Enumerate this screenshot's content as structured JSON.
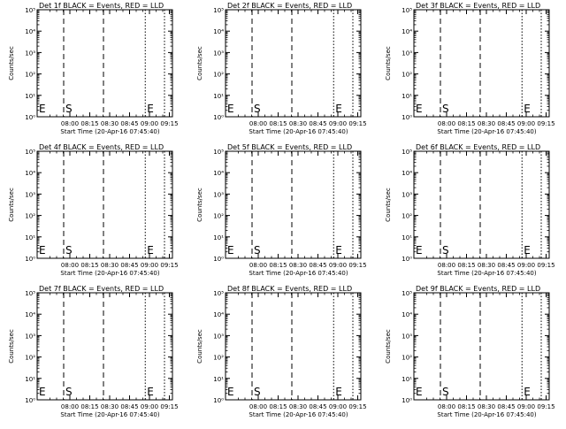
{
  "figure": {
    "background": "#ffffff",
    "ink_color": "#000000",
    "panel_count": 9
  },
  "chart_data": [
    {
      "type": "line",
      "title": "Det 1f BLACK = Events, RED = LLD",
      "xlabel": "Start Time (20-Apr-16 07:45:40)",
      "ylabel": "Counts/sec",
      "ylim": [
        1,
        100000
      ],
      "yscale": "log",
      "ytick_labels": [
        "10⁰",
        "10¹",
        "10²",
        "10³",
        "10⁴",
        "10⁵"
      ],
      "xtick_labels": [
        "08:00",
        "08:15",
        "08:30",
        "08:45",
        "09:00",
        "09:15"
      ],
      "xlim_minutes_after_start": [
        0,
        95
      ],
      "series": [],
      "markers": [
        {
          "label": "E",
          "minute": 0,
          "style": "dotted"
        },
        {
          "label": "S",
          "minute": 20,
          "style": "dashed"
        },
        {
          "label": "",
          "minute": 50,
          "style": "dashed"
        },
        {
          "label": "E",
          "minute": 81.5,
          "style": "dotted"
        },
        {
          "label": "",
          "minute": 96,
          "style": "dotted"
        }
      ]
    },
    {
      "type": "line",
      "title": "Det 2f BLACK = Events, RED = LLD",
      "xlabel": "Start Time (20-Apr-16 07:45:40)",
      "ylabel": "Counts/sec",
      "ylim": [
        1,
        100000
      ],
      "yscale": "log",
      "ytick_labels": [
        "10⁰",
        "10¹",
        "10²",
        "10³",
        "10⁴",
        "10⁵"
      ],
      "xtick_labels": [
        "08:00",
        "08:15",
        "08:30",
        "08:45",
        "09:00",
        "09:15"
      ],
      "xlim_minutes_after_start": [
        0,
        95
      ],
      "series": [],
      "markers": [
        {
          "label": "E",
          "minute": 0,
          "style": "dotted"
        },
        {
          "label": "S",
          "minute": 20,
          "style": "dashed"
        },
        {
          "label": "",
          "minute": 50,
          "style": "dashed"
        },
        {
          "label": "E",
          "minute": 81.5,
          "style": "dotted"
        },
        {
          "label": "",
          "minute": 96,
          "style": "dotted"
        }
      ]
    },
    {
      "type": "line",
      "title": "Det 3f BLACK = Events, RED = LLD",
      "xlabel": "Start Time (20-Apr-16 07:45:40)",
      "ylabel": "Counts/sec",
      "ylim": [
        1,
        100000
      ],
      "yscale": "log",
      "ytick_labels": [
        "10⁰",
        "10¹",
        "10²",
        "10³",
        "10⁴",
        "10⁵"
      ],
      "xtick_labels": [
        "08:00",
        "08:15",
        "08:30",
        "08:45",
        "09:00",
        "09:15"
      ],
      "xlim_minutes_after_start": [
        0,
        95
      ],
      "series": [],
      "markers": [
        {
          "label": "E",
          "minute": 0,
          "style": "dotted"
        },
        {
          "label": "S",
          "minute": 20,
          "style": "dashed"
        },
        {
          "label": "",
          "minute": 50,
          "style": "dashed"
        },
        {
          "label": "E",
          "minute": 81.5,
          "style": "dotted"
        },
        {
          "label": "",
          "minute": 96,
          "style": "dotted"
        }
      ]
    },
    {
      "type": "line",
      "title": "Det 4f BLACK = Events, RED = LLD",
      "xlabel": "Start Time (20-Apr-16 07:45:40)",
      "ylabel": "Counts/sec",
      "ylim": [
        1,
        100000
      ],
      "yscale": "log",
      "ytick_labels": [
        "10⁰",
        "10¹",
        "10²",
        "10³",
        "10⁴",
        "10⁵"
      ],
      "xtick_labels": [
        "08:00",
        "08:15",
        "08:30",
        "08:45",
        "09:00",
        "09:15"
      ],
      "xlim_minutes_after_start": [
        0,
        95
      ],
      "series": [],
      "markers": [
        {
          "label": "E",
          "minute": 0,
          "style": "dotted"
        },
        {
          "label": "S",
          "minute": 20,
          "style": "dashed"
        },
        {
          "label": "",
          "minute": 50,
          "style": "dashed"
        },
        {
          "label": "E",
          "minute": 81.5,
          "style": "dotted"
        },
        {
          "label": "",
          "minute": 96,
          "style": "dotted"
        }
      ]
    },
    {
      "type": "line",
      "title": "Det 5f BLACK = Events, RED = LLD",
      "xlabel": "Start Time (20-Apr-16 07:45:40)",
      "ylabel": "Counts/sec",
      "ylim": [
        1,
        100000
      ],
      "yscale": "log",
      "ytick_labels": [
        "10⁰",
        "10¹",
        "10²",
        "10³",
        "10⁴",
        "10⁵"
      ],
      "xtick_labels": [
        "08:00",
        "08:15",
        "08:30",
        "08:45",
        "09:00",
        "09:15"
      ],
      "xlim_minutes_after_start": [
        0,
        95
      ],
      "series": [],
      "markers": [
        {
          "label": "E",
          "minute": 0,
          "style": "dotted"
        },
        {
          "label": "S",
          "minute": 20,
          "style": "dashed"
        },
        {
          "label": "",
          "minute": 50,
          "style": "dashed"
        },
        {
          "label": "E",
          "minute": 81.5,
          "style": "dotted"
        },
        {
          "label": "",
          "minute": 96,
          "style": "dotted"
        }
      ]
    },
    {
      "type": "line",
      "title": "Det 6f BLACK = Events, RED = LLD",
      "xlabel": "Start Time (20-Apr-16 07:45:40)",
      "ylabel": "Counts/sec",
      "ylim": [
        1,
        100000
      ],
      "yscale": "log",
      "ytick_labels": [
        "10⁰",
        "10¹",
        "10²",
        "10³",
        "10⁴",
        "10⁵"
      ],
      "xtick_labels": [
        "08:00",
        "08:15",
        "08:30",
        "08:45",
        "09:00",
        "09:15"
      ],
      "xlim_minutes_after_start": [
        0,
        95
      ],
      "series": [],
      "markers": [
        {
          "label": "E",
          "minute": 0,
          "style": "dotted"
        },
        {
          "label": "S",
          "minute": 20,
          "style": "dashed"
        },
        {
          "label": "",
          "minute": 50,
          "style": "dashed"
        },
        {
          "label": "E",
          "minute": 81.5,
          "style": "dotted"
        },
        {
          "label": "",
          "minute": 96,
          "style": "dotted"
        }
      ]
    },
    {
      "type": "line",
      "title": "Det 7f BLACK = Events, RED = LLD",
      "xlabel": "Start Time (20-Apr-16 07:45:40)",
      "ylabel": "Counts/sec",
      "ylim": [
        1,
        100000
      ],
      "yscale": "log",
      "ytick_labels": [
        "10⁰",
        "10¹",
        "10²",
        "10³",
        "10⁴",
        "10⁵"
      ],
      "xtick_labels": [
        "08:00",
        "08:15",
        "08:30",
        "08:45",
        "09:00",
        "09:15"
      ],
      "xlim_minutes_after_start": [
        0,
        95
      ],
      "series": [],
      "markers": [
        {
          "label": "E",
          "minute": 0,
          "style": "dotted"
        },
        {
          "label": "S",
          "minute": 20,
          "style": "dashed"
        },
        {
          "label": "",
          "minute": 50,
          "style": "dashed"
        },
        {
          "label": "E",
          "minute": 81.5,
          "style": "dotted"
        },
        {
          "label": "",
          "minute": 96,
          "style": "dotted"
        }
      ]
    },
    {
      "type": "line",
      "title": "Det 8f BLACK = Events, RED = LLD",
      "xlabel": "Start Time (20-Apr-16 07:45:40)",
      "ylabel": "Counts/sec",
      "ylim": [
        1,
        100000
      ],
      "yscale": "log",
      "ytick_labels": [
        "10⁰",
        "10¹",
        "10²",
        "10³",
        "10⁴",
        "10⁵"
      ],
      "xtick_labels": [
        "08:00",
        "08:15",
        "08:30",
        "08:45",
        "09:00",
        "09:15"
      ],
      "xlim_minutes_after_start": [
        0,
        95
      ],
      "series": [],
      "markers": [
        {
          "label": "E",
          "minute": 0,
          "style": "dotted"
        },
        {
          "label": "S",
          "minute": 20,
          "style": "dashed"
        },
        {
          "label": "",
          "minute": 50,
          "style": "dashed"
        },
        {
          "label": "E",
          "minute": 81.5,
          "style": "dotted"
        },
        {
          "label": "",
          "minute": 96,
          "style": "dotted"
        }
      ]
    },
    {
      "type": "line",
      "title": "Det 9f BLACK = Events, RED = LLD",
      "xlabel": "Start Time (20-Apr-16 07:45:40)",
      "ylabel": "Counts/sec",
      "ylim": [
        1,
        100000
      ],
      "yscale": "log",
      "ytick_labels": [
        "10⁰",
        "10¹",
        "10²",
        "10³",
        "10⁴",
        "10⁵"
      ],
      "xtick_labels": [
        "08:00",
        "08:15",
        "08:30",
        "08:45",
        "09:00",
        "09:15"
      ],
      "xlim_minutes_after_start": [
        0,
        95
      ],
      "series": [],
      "markers": [
        {
          "label": "E",
          "minute": 0,
          "style": "dotted"
        },
        {
          "label": "S",
          "minute": 20,
          "style": "dashed"
        },
        {
          "label": "",
          "minute": 50,
          "style": "dashed"
        },
        {
          "label": "E",
          "minute": 81.5,
          "style": "dotted"
        },
        {
          "label": "",
          "minute": 96,
          "style": "dotted"
        }
      ]
    }
  ]
}
